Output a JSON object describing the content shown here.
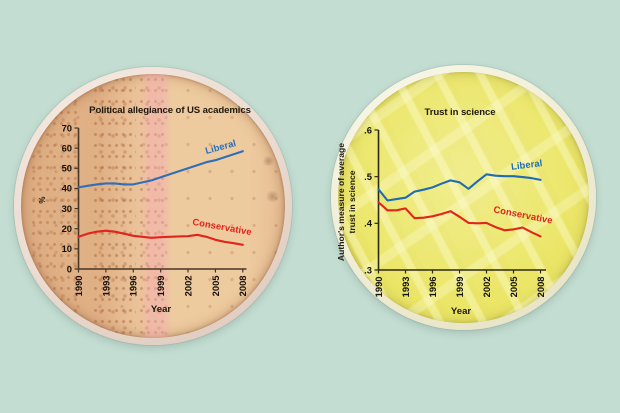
{
  "page": {
    "background_color": "#c3ddd2"
  },
  "dishes": {
    "left": {
      "agar_color": "#eeca9f",
      "rim_color": "#eddcd2"
    },
    "right": {
      "agar_color": "#ebe667",
      "rim_color": "#f2efd6"
    }
  },
  "chart_data": [
    {
      "type": "line",
      "title": "Political allegiance of US academics",
      "xlabel": "Year",
      "ylabel": "%",
      "xlim": [
        1990,
        2008
      ],
      "ylim": [
        0,
        70
      ],
      "grid": false,
      "legend": "inline-labels",
      "axis_color": "#473623",
      "tick_color": "#181008",
      "xticks": [
        1990,
        1993,
        1996,
        1999,
        2002,
        2005,
        2008
      ],
      "yticks": [
        {
          "v": 0,
          "label": "0"
        },
        {
          "v": 10,
          "label": "10"
        },
        {
          "v": 20,
          "label": "20"
        },
        {
          "v": 30,
          "label": "30"
        },
        {
          "v": 40,
          "label": "40"
        },
        {
          "v": 50,
          "label": "50"
        },
        {
          "v": 60,
          "label": "60"
        },
        {
          "v": 70,
          "label": "70"
        }
      ],
      "x": [
        1990,
        1991,
        1992,
        1993,
        1994,
        1995,
        1996,
        1997,
        1998,
        1999,
        2000,
        2001,
        2002,
        2003,
        2004,
        2005,
        2006,
        2007,
        2008
      ],
      "series": [
        {
          "name": "Liberal",
          "color": "#2e6fb7",
          "values": [
            40.5,
            41.3,
            42,
            42.5,
            42.5,
            42,
            42,
            43,
            44,
            45.5,
            47,
            48.5,
            50,
            51.5,
            53,
            54,
            55.5,
            57,
            58.5
          ]
        },
        {
          "name": "Conservative",
          "color": "#e1251c",
          "values": [
            16,
            17.5,
            18.5,
            19,
            18.5,
            17.5,
            16.5,
            16,
            15.5,
            15.8,
            16,
            16.2,
            16.3,
            17,
            16,
            14.5,
            13.5,
            12.8,
            12
          ]
        }
      ]
    },
    {
      "type": "line",
      "title": "Trust in science",
      "xlabel": "Year",
      "ylabel": "Author's measure of average trust in science",
      "ylabel_lines": [
        "Author's measure of average",
        "trust in science"
      ],
      "xlim": [
        1990,
        2008
      ],
      "ylim": [
        0.3,
        0.6
      ],
      "grid": false,
      "legend": "inline-labels",
      "axis_color": "#2e2a16",
      "tick_color": "#14120a",
      "xticks": [
        1990,
        1993,
        1996,
        1999,
        2002,
        2005,
        2008
      ],
      "yticks": [
        {
          "v": 0.3,
          "label": ".3"
        },
        {
          "v": 0.4,
          "label": ".4"
        },
        {
          "v": 0.5,
          "label": ".5"
        },
        {
          "v": 0.6,
          "label": ".6"
        }
      ],
      "x": [
        1990,
        1991,
        1992,
        1993,
        1994,
        1995,
        1996,
        1997,
        1998,
        1999,
        2000,
        2001,
        2002,
        2003,
        2004,
        2005,
        2006,
        2007,
        2008
      ],
      "series": [
        {
          "name": "Liberal",
          "color": "#1f6cb2",
          "values": [
            0.473,
            0.449,
            0.452,
            0.455,
            0.468,
            0.472,
            0.477,
            0.485,
            0.492,
            0.488,
            0.474,
            0.49,
            0.505,
            0.502,
            0.501,
            0.501,
            0.499,
            0.497,
            0.493
          ]
        },
        {
          "name": "Conservative",
          "color": "#e1251c",
          "values": [
            0.445,
            0.428,
            0.428,
            0.432,
            0.411,
            0.412,
            0.415,
            0.42,
            0.426,
            0.414,
            0.401,
            0.4,
            0.401,
            0.392,
            0.385,
            0.387,
            0.391,
            0.381,
            0.372
          ]
        }
      ]
    }
  ]
}
